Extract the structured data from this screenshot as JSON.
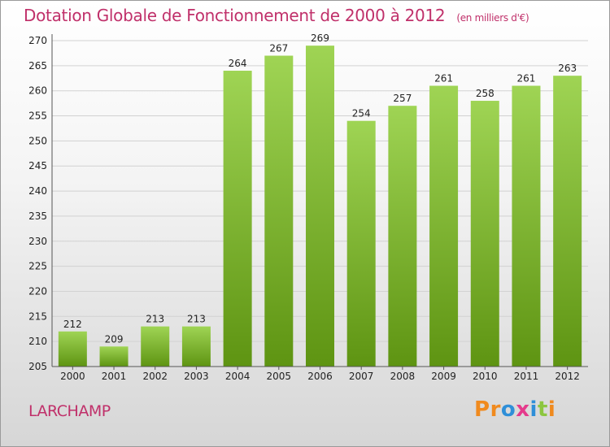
{
  "header": {
    "title": "Dotation Globale de Fonctionnement de 2000 à 2012",
    "unit": "(en milliers d'€)"
  },
  "footer": {
    "place": "LARCHAMP",
    "brand": "Proxiti",
    "brand_letters": [
      {
        "ch": "P",
        "color": "#f08a1e"
      },
      {
        "ch": "r",
        "color": "#f08a1e"
      },
      {
        "ch": "o",
        "color": "#2f8fd8"
      },
      {
        "ch": "x",
        "color": "#e53a8c"
      },
      {
        "ch": "i",
        "color": "#2f8fd8"
      },
      {
        "ch": "t",
        "color": "#8cc63f"
      },
      {
        "ch": "i",
        "color": "#f08a1e"
      }
    ]
  },
  "colors": {
    "title": "#c0306a",
    "bar_top": "#9fd454",
    "bar_bottom": "#5e9412",
    "grid": "#d2d2d2"
  },
  "chart_data": {
    "type": "bar",
    "title": "Dotation Globale de Fonctionnement de 2000 à 2012",
    "subtitle": "(en milliers d'€)",
    "categories": [
      "2000",
      "2001",
      "2002",
      "2003",
      "2004",
      "2005",
      "2006",
      "2007",
      "2008",
      "2009",
      "2010",
      "2011",
      "2012"
    ],
    "values": [
      212,
      209,
      213,
      213,
      264,
      267,
      269,
      254,
      257,
      261,
      258,
      261,
      263
    ],
    "ylim": [
      205,
      270
    ],
    "yticks": [
      205,
      210,
      215,
      220,
      225,
      230,
      235,
      240,
      245,
      250,
      255,
      260,
      265,
      270
    ],
    "grid": true,
    "data_labels": true
  }
}
